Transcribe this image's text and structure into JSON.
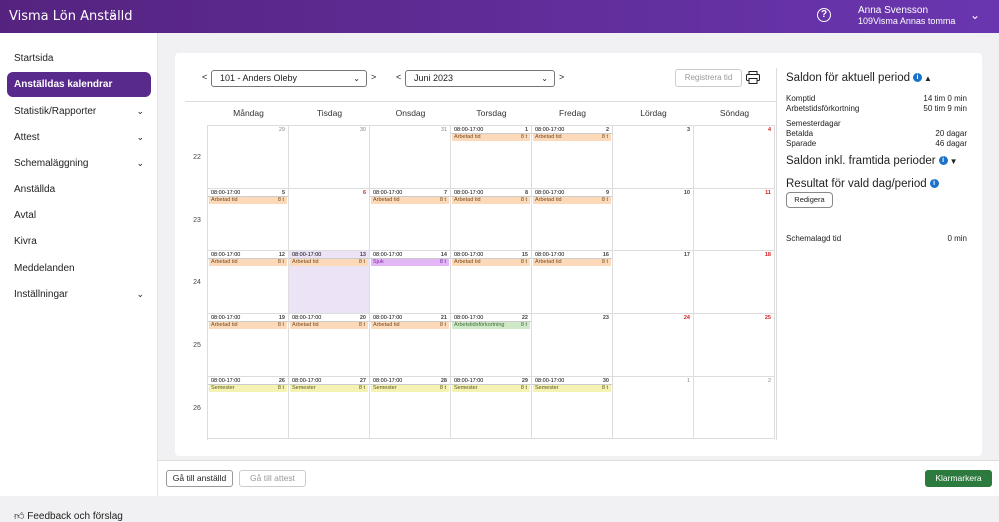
{
  "header": {
    "app_title": "Visma Lön Anställd",
    "user_name": "Anna Svensson",
    "user_company": "109Visma Annas tomma"
  },
  "sidebar": {
    "items": [
      {
        "label": "Startsida",
        "has_chevron": false
      },
      {
        "label": "Anställdas kalendrar",
        "has_chevron": false,
        "active": true
      },
      {
        "label": "Statistik/Rapporter",
        "has_chevron": true
      },
      {
        "label": "Attest",
        "has_chevron": true
      },
      {
        "label": "Schemaläggning",
        "has_chevron": true
      },
      {
        "label": "Anställda",
        "has_chevron": false
      },
      {
        "label": "Avtal",
        "has_chevron": false
      },
      {
        "label": "Kivra",
        "has_chevron": false
      },
      {
        "label": "Meddelanden",
        "has_chevron": false
      },
      {
        "label": "Inställningar",
        "has_chevron": true
      }
    ],
    "feedback": "Feedback och förslag"
  },
  "toolbar": {
    "employee_select": "101 - Anders Oleby",
    "month_select": "Juni 2023",
    "register_time": "Registrera tid"
  },
  "calendar": {
    "weekdays": [
      "Måndag",
      "Tisdag",
      "Onsdag",
      "Torsdag",
      "Fredag",
      "Lördag",
      "Söndag"
    ],
    "weeks": [
      {
        "no": "22",
        "days": [
          {
            "d": "29",
            "prev": true
          },
          {
            "d": "30",
            "prev": true
          },
          {
            "d": "31",
            "prev": true
          },
          {
            "d": "1",
            "time": "08:00-17:00",
            "ev": "Arbetad tid",
            "hours": "8 t",
            "cls": "arb"
          },
          {
            "d": "2",
            "time": "08:00-17:00",
            "ev": "Arbetad tid",
            "hours": "8 t",
            "cls": "arb"
          },
          {
            "d": "3"
          },
          {
            "d": "4",
            "red": true
          }
        ]
      },
      {
        "no": "23",
        "days": [
          {
            "d": "5",
            "time": "08:00-17:00",
            "ev": "Arbetad tid",
            "hours": "8 t",
            "cls": "arb"
          },
          {
            "d": "6",
            "red": true
          },
          {
            "d": "7",
            "time": "08:00-17:00",
            "ev": "Arbetad tid",
            "hours": "8 t",
            "cls": "arb"
          },
          {
            "d": "8",
            "time": "08:00-17:00",
            "ev": "Arbetad tid",
            "hours": "8 t",
            "cls": "arb"
          },
          {
            "d": "9",
            "time": "08:00-17:00",
            "ev": "Arbetad tid",
            "hours": "8 t",
            "cls": "arb"
          },
          {
            "d": "10"
          },
          {
            "d": "11",
            "red": true
          }
        ]
      },
      {
        "no": "24",
        "days": [
          {
            "d": "12",
            "time": "08:00-17:00",
            "ev": "Arbetad tid",
            "hours": "8 t",
            "cls": "arb"
          },
          {
            "d": "13",
            "time": "08:00-17:00",
            "ev": "Arbetad tid",
            "hours": "8 t",
            "cls": "arb",
            "selected": true
          },
          {
            "d": "14",
            "time": "08:00-17:00",
            "ev": "Sjuk",
            "hours": "8 t",
            "cls": "sjuk"
          },
          {
            "d": "15",
            "time": "08:00-17:00",
            "ev": "Arbetad tid",
            "hours": "8 t",
            "cls": "arb"
          },
          {
            "d": "16",
            "time": "08:00-17:00",
            "ev": "Arbetad tid",
            "hours": "8 t",
            "cls": "arb"
          },
          {
            "d": "17"
          },
          {
            "d": "18",
            "red": true
          }
        ]
      },
      {
        "no": "25",
        "days": [
          {
            "d": "19",
            "time": "08:00-17:00",
            "ev": "Arbetad tid",
            "hours": "8 t",
            "cls": "arb"
          },
          {
            "d": "20",
            "time": "08:00-17:00",
            "ev": "Arbetad tid",
            "hours": "8 t",
            "cls": "arb"
          },
          {
            "d": "21",
            "time": "08:00-17:00",
            "ev": "Arbetad tid",
            "hours": "8 t",
            "cls": "arb"
          },
          {
            "d": "22",
            "time": "08:00-17:00",
            "ev": "Arbetstidsförkortning",
            "hours": "8 t",
            "cls": "atk"
          },
          {
            "d": "23"
          },
          {
            "d": "24",
            "red": true
          },
          {
            "d": "25",
            "red": true
          }
        ]
      },
      {
        "no": "26",
        "days": [
          {
            "d": "26",
            "time": "08:00-17:00",
            "ev": "Semester",
            "hours": "8 t",
            "cls": "sem"
          },
          {
            "d": "27",
            "time": "08:00-17:00",
            "ev": "Semester",
            "hours": "8 t",
            "cls": "sem"
          },
          {
            "d": "28",
            "time": "08:00-17:00",
            "ev": "Semester",
            "hours": "8 t",
            "cls": "sem"
          },
          {
            "d": "29",
            "time": "08:00-17:00",
            "ev": "Semester",
            "hours": "8 t",
            "cls": "sem"
          },
          {
            "d": "30",
            "time": "08:00-17:00",
            "ev": "Semester",
            "hours": "8 t",
            "cls": "sem"
          },
          {
            "d": "1",
            "prev": true
          },
          {
            "d": "2",
            "prev": true
          }
        ]
      }
    ]
  },
  "right_panel": {
    "saldon_current": "Saldon för aktuell period",
    "rows1": [
      {
        "label": "Komptid",
        "value": "14 tim 0 min"
      },
      {
        "label": "Arbetstidsförkortning",
        "value": "50 tim 9 min"
      },
      {
        "label": "Semesterdagar",
        "value": ""
      },
      {
        "label": "Betalda",
        "value": "20 dagar"
      },
      {
        "label": "Sparade",
        "value": "46 dagar"
      }
    ],
    "saldon_future": "Saldon inkl. framtida perioder",
    "result_heading": "Resultat för vald dag/period",
    "redigera": "Redigera",
    "scheduled_label": "Schemalagd tid",
    "scheduled_value": "0 min"
  },
  "footer": {
    "goto_employee": "Gå till anställd",
    "goto_attest": "Gå till attest",
    "klarmarkera": "Klarmarkera"
  },
  "colors": {
    "header_gradient_start": "#55237f",
    "header_gradient_end": "#6a36b0",
    "active_nav": "#582a8c",
    "primary_button": "#2d7a3e"
  }
}
